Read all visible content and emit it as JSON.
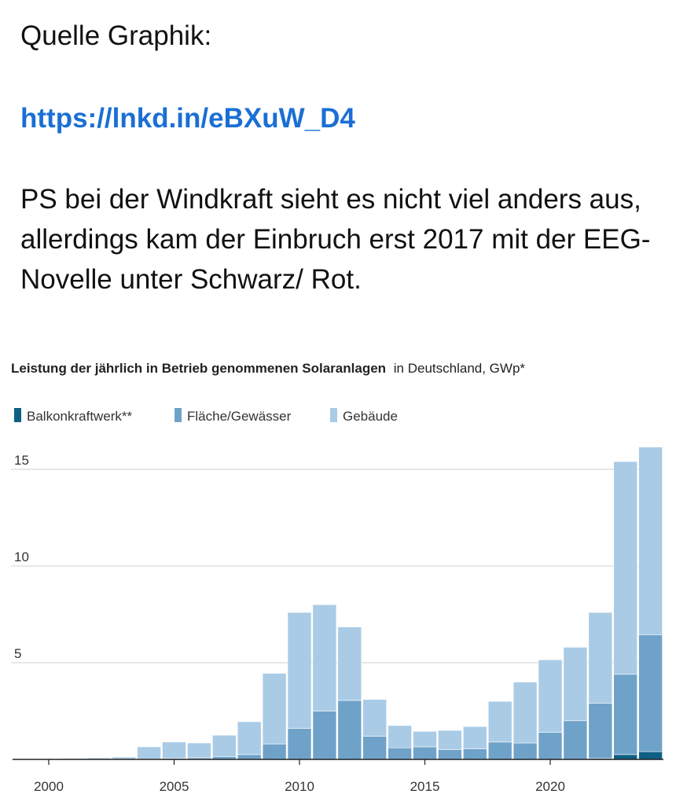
{
  "post": {
    "source_label": "Quelle Graphik:",
    "link": "https://lnkd.in/eBXuW_D4",
    "body": "PS bei der Windkraft sieht es nicht viel anders aus, allerdings kam der Einbruch erst 2017 mit der EEG-Novelle unter Schwarz/ Rot."
  },
  "colors": {
    "balkon": "#0e5f85",
    "flaeche": "#6fa2c9",
    "gebaeude": "#a9cbe6",
    "grid": "#cfcfcf",
    "link": "#1a6fd4"
  },
  "chart_data": {
    "type": "bar",
    "stacked": true,
    "title": "Leistung der jährlich in Betrieb genommenen Solaranlagen",
    "subtitle": "in Deutschland, GWp*",
    "legend": [
      "Balkonkraftwerk**",
      "Fläche/Gewässer",
      "Gebäude"
    ],
    "legend_position": "top-left",
    "x": [
      2000,
      2001,
      2002,
      2003,
      2004,
      2005,
      2006,
      2007,
      2008,
      2009,
      2010,
      2011,
      2012,
      2013,
      2014,
      2015,
      2016,
      2017,
      2018,
      2019,
      2020,
      2021,
      2022,
      2023,
      2024
    ],
    "x_ticks": [
      2000,
      2005,
      2010,
      2015,
      2020
    ],
    "y_ticks": [
      5,
      10,
      15
    ],
    "ylim": [
      0,
      16.5
    ],
    "grid": "horizontal",
    "series": [
      {
        "name": "Balkonkraftwerk**",
        "values": [
          0,
          0,
          0,
          0,
          0,
          0,
          0,
          0,
          0,
          0,
          0,
          0,
          0,
          0,
          0,
          0,
          0,
          0,
          0,
          0,
          0,
          0,
          0.05,
          0.25,
          0.4
        ]
      },
      {
        "name": "Fläche/Gewässer",
        "values": [
          0,
          0,
          0,
          0,
          0.02,
          0.05,
          0.08,
          0.15,
          0.25,
          0.8,
          1.6,
          2.5,
          3.05,
          1.2,
          0.6,
          0.65,
          0.5,
          0.55,
          0.9,
          0.85,
          1.4,
          2.0,
          2.85,
          4.15,
          6.05
        ]
      },
      {
        "name": "Gebäude",
        "values": [
          0.03,
          0.05,
          0.08,
          0.12,
          0.63,
          0.85,
          0.77,
          1.1,
          1.7,
          3.65,
          6.0,
          5.5,
          3.8,
          1.9,
          1.15,
          0.8,
          1.0,
          1.15,
          2.1,
          3.15,
          3.75,
          3.8,
          4.7,
          11.0,
          9.7
        ]
      }
    ]
  }
}
